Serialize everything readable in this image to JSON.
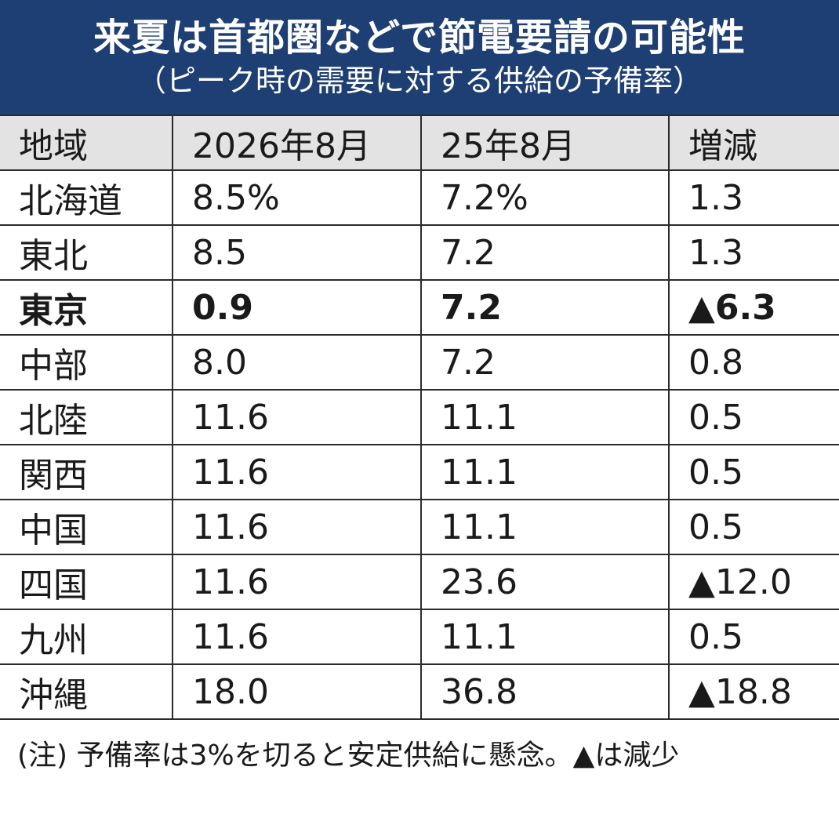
{
  "header": {
    "title": "来夏は首都圏などで節電要請の可能性",
    "subtitle": "（ピーク時の需要に対する供給の予備率）",
    "bg_color": "#1e3f73",
    "text_color": "#ffffff"
  },
  "chart_data": {
    "type": "table",
    "title": "来夏は首都圏などで節電要請の可能性",
    "subtitle": "（ピーク時の需要に対する供給の予備率）",
    "columns": [
      "地域",
      "2026年8月",
      "25年8月",
      "増減"
    ],
    "rows": [
      {
        "region": "北海道",
        "y2026": "8.5%",
        "y2025": "7.2%",
        "change": "1.3",
        "bold": false
      },
      {
        "region": "東北",
        "y2026": "8.5",
        "y2025": "7.2",
        "change": "1.3",
        "bold": false
      },
      {
        "region": "東京",
        "y2026": "0.9",
        "y2025": "7.2",
        "change": "▲6.3",
        "bold": true
      },
      {
        "region": "中部",
        "y2026": "8.0",
        "y2025": "7.2",
        "change": "0.8",
        "bold": false
      },
      {
        "region": "北陸",
        "y2026": "11.6",
        "y2025": "11.1",
        "change": "0.5",
        "bold": false
      },
      {
        "region": "関西",
        "y2026": "11.6",
        "y2025": "11.1",
        "change": "0.5",
        "bold": false
      },
      {
        "region": "中国",
        "y2026": "11.6",
        "y2025": "11.1",
        "change": "0.5",
        "bold": false
      },
      {
        "region": "四国",
        "y2026": "11.6",
        "y2025": "23.6",
        "change": "▲12.0",
        "bold": false
      },
      {
        "region": "九州",
        "y2026": "11.6",
        "y2025": "11.1",
        "change": "0.5",
        "bold": false
      },
      {
        "region": "沖縄",
        "y2026": "18.0",
        "y2025": "36.8",
        "change": "▲18.8",
        "bold": false
      }
    ],
    "header_bg_color": "#e3e3e3"
  },
  "note": "(注) 予備率は3%を切ると安定供給に懸念。▲は減少"
}
